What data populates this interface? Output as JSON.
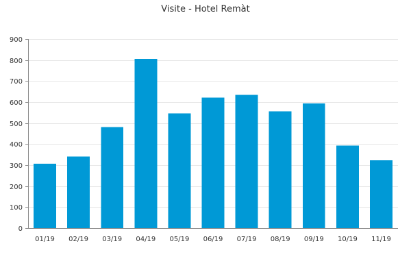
{
  "chart_data": {
    "type": "bar",
    "title": "Visite - Hotel Remàt",
    "xlabel": "",
    "ylabel": "",
    "categories": [
      "01/19",
      "02/19",
      "03/19",
      "04/19",
      "05/19",
      "06/19",
      "07/19",
      "08/19",
      "09/19",
      "10/19",
      "11/19"
    ],
    "values": [
      307,
      340,
      481,
      806,
      546,
      621,
      634,
      556,
      594,
      393,
      323
    ],
    "ylim": [
      0,
      900
    ],
    "yticks": [
      0,
      100,
      200,
      300,
      400,
      500,
      600,
      700,
      800,
      900
    ],
    "grid": true,
    "legend": "none",
    "colors": {
      "bar": "#0099d6"
    }
  }
}
